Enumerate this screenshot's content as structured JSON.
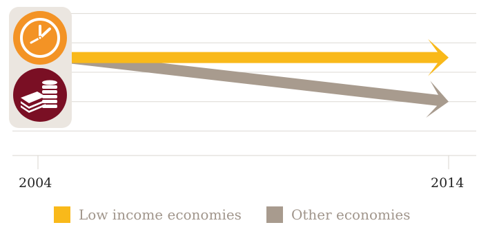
{
  "chart_data": {
    "type": "line",
    "x": [
      2004,
      2014
    ],
    "x_tick_labels": [
      "2004",
      "2014"
    ],
    "series": [
      {
        "name": "Low income economies",
        "values": [
          1.0,
          1.0
        ],
        "color": "#f9b91a"
      },
      {
        "name": "Other economies",
        "values": [
          1.0,
          0.28
        ],
        "color": "#a89b8e"
      }
    ],
    "y_gridlines": [
      1.72,
      1.24,
      0.76,
      0.28,
      -0.2
    ],
    "ylim": [
      -0.6,
      1.85
    ],
    "grid": true,
    "legend_position": "bottom",
    "icons": [
      {
        "name": "clock-icon",
        "color": "#f39325"
      },
      {
        "name": "money-icon",
        "color": "#7a0f24"
      }
    ]
  }
}
